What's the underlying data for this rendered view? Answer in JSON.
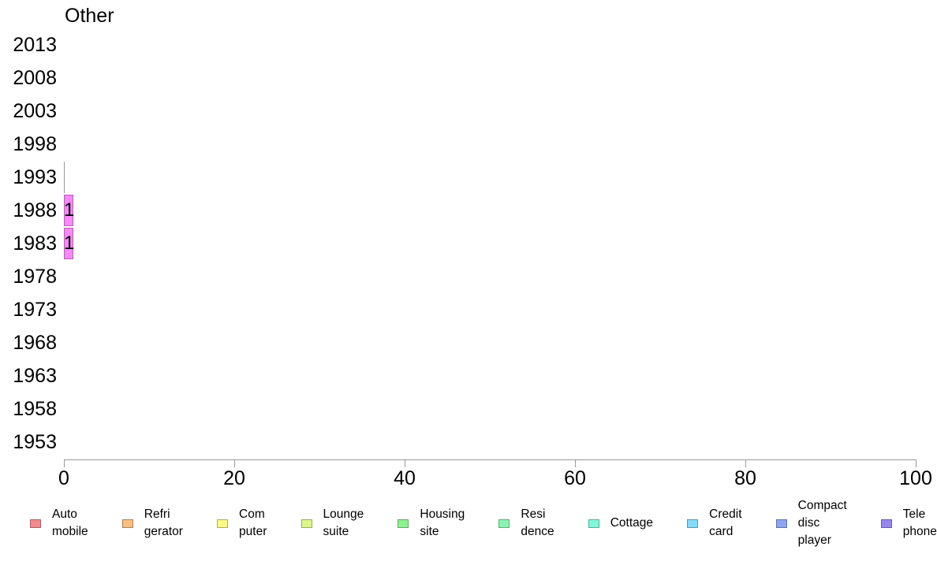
{
  "chart_data": {
    "type": "bar",
    "orientation": "horizontal",
    "title": "Other",
    "categories": [
      "2013",
      "2008",
      "2003",
      "1998",
      "1993",
      "1988",
      "1983",
      "1978",
      "1973",
      "1968",
      "1963",
      "1958",
      "1953"
    ],
    "values": [
      null,
      null,
      null,
      null,
      0,
      1,
      1,
      null,
      null,
      null,
      null,
      null,
      null
    ],
    "bar_labels": [
      null,
      null,
      null,
      null,
      null,
      "1",
      "1",
      null,
      null,
      null,
      null,
      null,
      null
    ],
    "xlim": [
      0,
      100
    ],
    "xticks": [
      0,
      20,
      40,
      60,
      80,
      100
    ],
    "grid": false,
    "legend_position": "bottom",
    "series_color": "#F887F8",
    "series_border_color": "#BC5ABC",
    "zero_bar_color": "#999999",
    "axis_color": "#999999",
    "legend": [
      {
        "label_lines": [
          "Auto",
          "mobile"
        ],
        "color": "#F4898D"
      },
      {
        "label_lines": [
          "Refri",
          "gerator"
        ],
        "color": "#FBBD80"
      },
      {
        "label_lines": [
          "Com",
          "puter"
        ],
        "color": "#FAFA85"
      },
      {
        "label_lines": [
          "Lounge",
          "suite"
        ],
        "color": "#DDF78C"
      },
      {
        "label_lines": [
          "Housing",
          "site"
        ],
        "color": "#90F28F"
      },
      {
        "label_lines": [
          "Resi",
          "dence"
        ],
        "color": "#8DF3B2"
      },
      {
        "label_lines": [
          "Cottage"
        ],
        "color": "#80F8D9"
      },
      {
        "label_lines": [
          "Credit",
          "card"
        ],
        "color": "#82DBF8"
      },
      {
        "label_lines": [
          "Compact",
          "disc",
          "player"
        ],
        "color": "#8CA4F3"
      },
      {
        "label_lines": [
          "Tele",
          "phone"
        ],
        "color": "#9786EF"
      }
    ]
  }
}
